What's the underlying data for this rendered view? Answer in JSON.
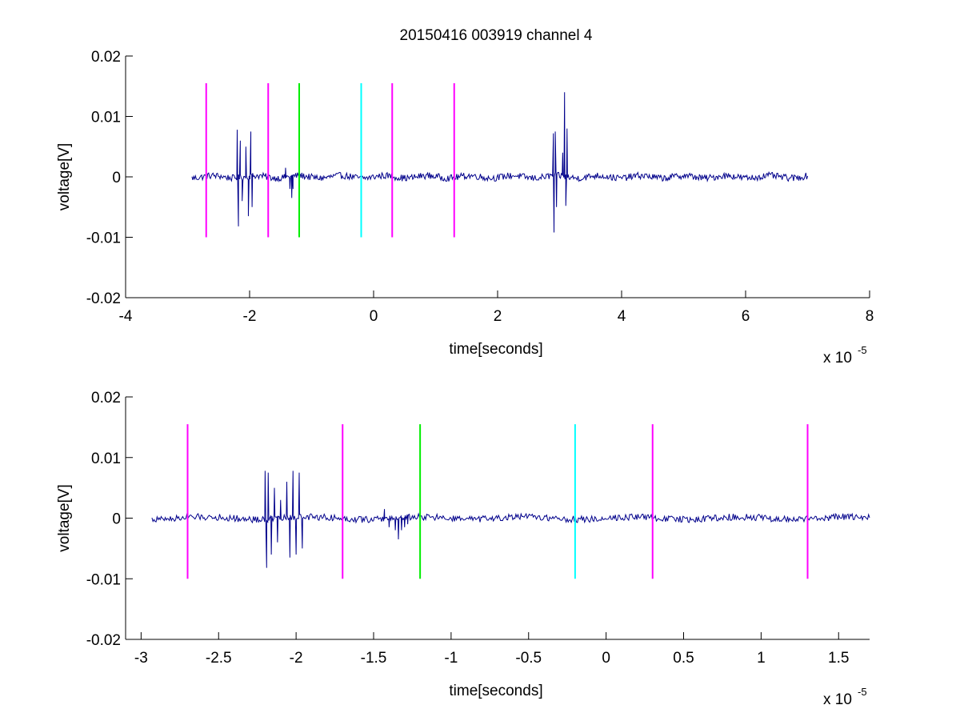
{
  "title": "20150416 003919 channel 4",
  "colors": {
    "signal": "#00008b",
    "magenta": "#ff00ff",
    "green": "#00ee00",
    "cyan": "#00ffff",
    "axis": "#000000",
    "background": "#ffffff"
  },
  "chart_data": [
    {
      "type": "line",
      "title": "20150416 003919 channel 4",
      "xlabel": "time[seconds]",
      "ylabel": "voltage[V]",
      "x_multiplier": "x 10",
      "x_exponent": "-5",
      "xlim": [
        -4,
        8
      ],
      "ylim": [
        -0.02,
        0.02
      ],
      "xticks": [
        -4,
        -2,
        0,
        2,
        4,
        6,
        8
      ],
      "xtick_labels": [
        "-4",
        "-2",
        "0",
        "2",
        "4",
        "6",
        "8"
      ],
      "yticks": [
        -0.02,
        -0.01,
        0,
        0.01,
        0.02
      ],
      "ytick_labels": [
        "-0.02",
        "-0.01",
        "0",
        "0.01",
        "0.02"
      ],
      "grid": false,
      "signal_range_x": [
        -2.93,
        7.0
      ],
      "bursts": [
        {
          "x": [
            -2.2,
            -2.18,
            -2.15,
            -2.12,
            -2.06,
            -2.02,
            -1.98,
            -1.96
          ],
          "y": [
            0.0078,
            -0.0082,
            0.006,
            -0.004,
            0.005,
            -0.0065,
            0.0075,
            -0.005
          ]
        },
        {
          "x": [
            -1.42,
            -1.35,
            -1.32,
            -1.3
          ],
          "y": [
            0.0015,
            -0.002,
            -0.0035,
            -0.002
          ]
        },
        {
          "x": [
            2.9,
            2.91,
            2.93,
            2.95,
            3.05,
            3.08,
            3.1,
            3.12
          ],
          "y": [
            0.0072,
            -0.0092,
            0.0075,
            -0.005,
            0.004,
            0.014,
            -0.0048,
            0.008
          ]
        }
      ],
      "markers": [
        {
          "x": -2.7,
          "color": "#ff00ff",
          "y_range": [
            -0.01,
            0.0155
          ]
        },
        {
          "x": -1.7,
          "color": "#ff00ff",
          "y_range": [
            -0.01,
            0.0155
          ]
        },
        {
          "x": -1.2,
          "color": "#00ee00",
          "y_range": [
            -0.01,
            0.0155
          ]
        },
        {
          "x": -0.2,
          "color": "#00ffff",
          "y_range": [
            -0.01,
            0.0155
          ]
        },
        {
          "x": 0.3,
          "color": "#ff00ff",
          "y_range": [
            -0.01,
            0.0155
          ]
        },
        {
          "x": 1.3,
          "color": "#ff00ff",
          "y_range": [
            -0.01,
            0.0155
          ]
        }
      ]
    },
    {
      "type": "line",
      "xlabel": "time[seconds]",
      "ylabel": "voltage[V]",
      "x_multiplier": "x 10",
      "x_exponent": "-5",
      "xlim": [
        -3.1,
        1.7
      ],
      "ylim": [
        -0.02,
        0.02
      ],
      "xticks": [
        -3,
        -2.5,
        -2,
        -1.5,
        -1,
        -0.5,
        0,
        0.5,
        1,
        1.5
      ],
      "xtick_labels": [
        "-3",
        "-2.5",
        "-2",
        "-1.5",
        "-1",
        "-0.5",
        "0",
        "0.5",
        "1",
        "1.5"
      ],
      "yticks": [
        -0.02,
        -0.01,
        0,
        0.01,
        0.02
      ],
      "ytick_labels": [
        "-0.02",
        "-0.01",
        "0",
        "0.01",
        "0.02"
      ],
      "grid": false,
      "signal_range_x": [
        -2.93,
        1.7
      ],
      "bursts": [
        {
          "x": [
            -2.2,
            -2.19,
            -2.18,
            -2.16,
            -2.14,
            -2.12,
            -2.1,
            -2.06,
            -2.04,
            -2.02,
            -2.0,
            -1.98,
            -1.96
          ],
          "y": [
            0.0078,
            -0.0082,
            0.0075,
            -0.006,
            0.005,
            -0.004,
            0.003,
            0.006,
            -0.0065,
            0.0078,
            -0.006,
            0.0075,
            -0.005
          ]
        },
        {
          "x": [
            -1.43,
            -1.4,
            -1.36,
            -1.34,
            -1.32,
            -1.3,
            -1.28
          ],
          "y": [
            0.0015,
            -0.0015,
            -0.002,
            -0.0035,
            -0.002,
            -0.0015,
            -0.001
          ]
        }
      ],
      "markers": [
        {
          "x": -2.7,
          "color": "#ff00ff",
          "y_range": [
            -0.01,
            0.0155
          ]
        },
        {
          "x": -1.7,
          "color": "#ff00ff",
          "y_range": [
            -0.01,
            0.0155
          ]
        },
        {
          "x": -1.2,
          "color": "#00ee00",
          "y_range": [
            -0.01,
            0.0155
          ]
        },
        {
          "x": -0.2,
          "color": "#00ffff",
          "y_range": [
            -0.01,
            0.0155
          ]
        },
        {
          "x": 0.3,
          "color": "#ff00ff",
          "y_range": [
            -0.01,
            0.0155
          ]
        },
        {
          "x": 1.3,
          "color": "#ff00ff",
          "y_range": [
            -0.01,
            0.0155
          ]
        }
      ]
    }
  ]
}
